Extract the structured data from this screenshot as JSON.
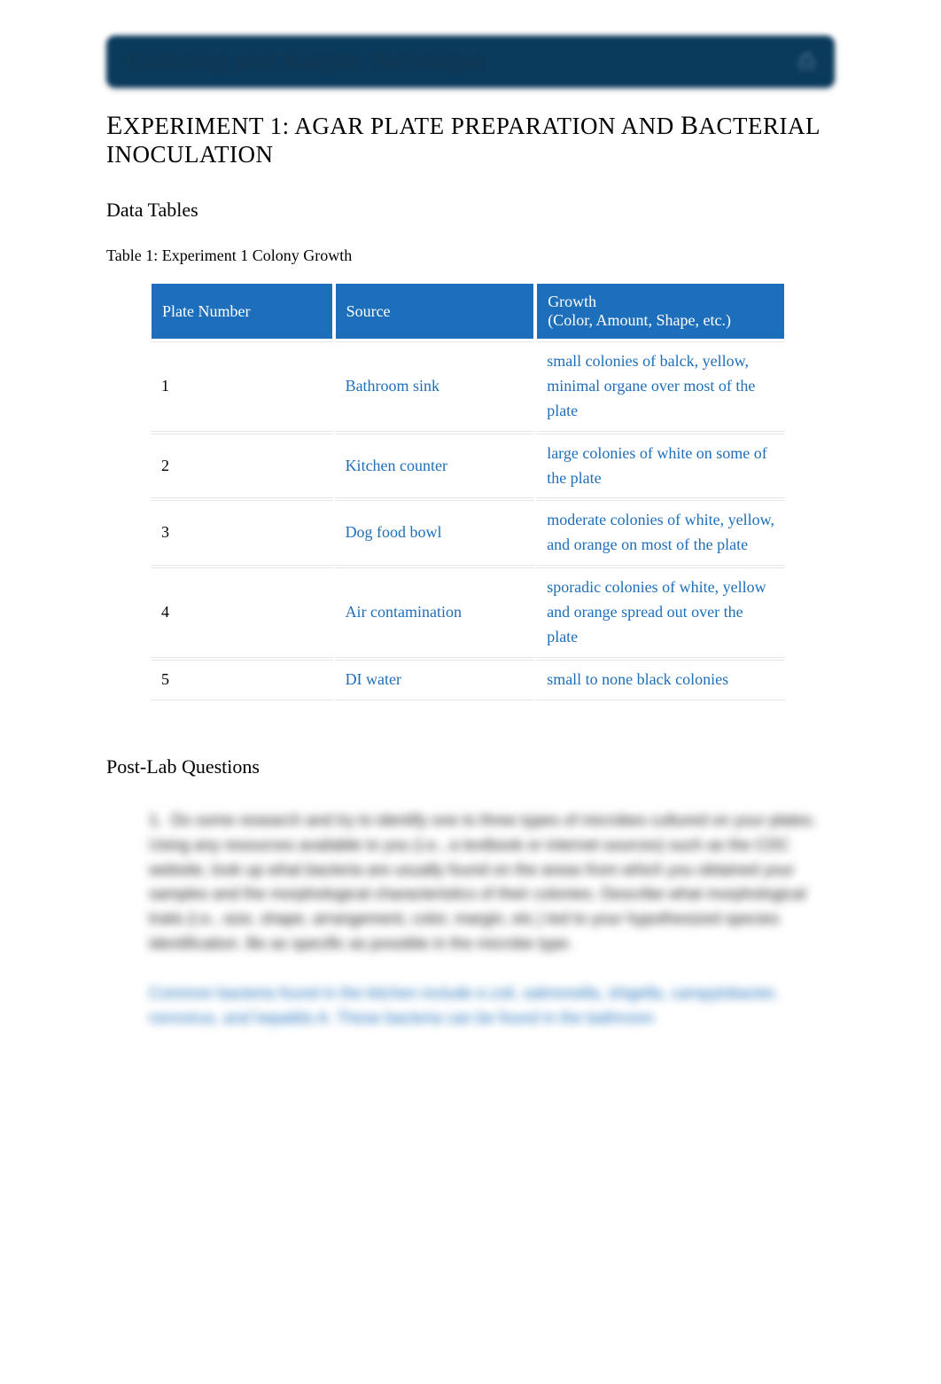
{
  "header": {
    "title": "Culturing and Aseptic Technique",
    "icon_glyph": "⎙"
  },
  "experiment": {
    "title_parts": [
      "E",
      "XPERIMENT",
      " 1: A",
      "GAR",
      " P",
      "LATE",
      " P",
      "REPARATION",
      "  AND ",
      "B",
      "ACTERIAL",
      " I",
      "NOCULATION"
    ]
  },
  "sections": {
    "data_tables": "Data Tables",
    "post_lab": "Post-Lab Questions"
  },
  "table1": {
    "caption": "Table 1: Experiment 1 Colony Growth",
    "headers": {
      "plate": "Plate Number",
      "source": "Source",
      "growth_line1": "Growth",
      "growth_line2": "(Color, Amount, Shape, etc.)"
    },
    "rows": [
      {
        "plate": "1",
        "source": "Bathroom sink",
        "growth": "small colonies of balck, yellow, minimal organe over most of the plate"
      },
      {
        "plate": "2",
        "source": "Kitchen counter",
        "growth": "large colonies of white on some of the plate"
      },
      {
        "plate": "3",
        "source": "Dog food bowl",
        "growth": "moderate colonies of white, yellow, and orange on most of the plate"
      },
      {
        "plate": "4",
        "source": "Air contamination",
        "growth": "sporadic colonies of white, yellow and orange spread out over the plate"
      },
      {
        "plate": "5",
        "source": "DI water",
        "growth": "small to none black colonies"
      }
    ]
  },
  "question": {
    "number": "1.",
    "text": "Do some research and try to identify one to three types of microbes cultured on your plates. Using any resources available to you (i.e., a textbook or internet sources) such as the CDC website, look up what bacteria are usually found on the areas from which you obtained your samples and the morphological characteristics of their colonies. Describe what morphological traits (i.e., size, shape, arrangement, color, margin, etc.) led to your hypothesized species identification. Be as specific as possible in the microbe type.",
    "answer": "Common bacteria found in the kitchen include e.coli, salmonella, shigella, campylobacter, norovirus, and hepatitis A. These bacteria can be found in the bathroom"
  },
  "colors": {
    "header_bg": "#0a3a5c",
    "header_text": "#133b56",
    "table_header_bg": "#1d6fbb",
    "table_header_text": "#ffffff",
    "link_blue": "#1d6fbb",
    "body_text": "#000000",
    "page_bg": "#ffffff",
    "row_border": "#e6e6e6"
  },
  "typography": {
    "body_font": "Georgia, Times New Roman, serif",
    "blur_font": "Arial, sans-serif",
    "title_fontsize": 27,
    "section_fontsize": 22,
    "caption_fontsize": 18,
    "cell_fontsize": 18
  }
}
